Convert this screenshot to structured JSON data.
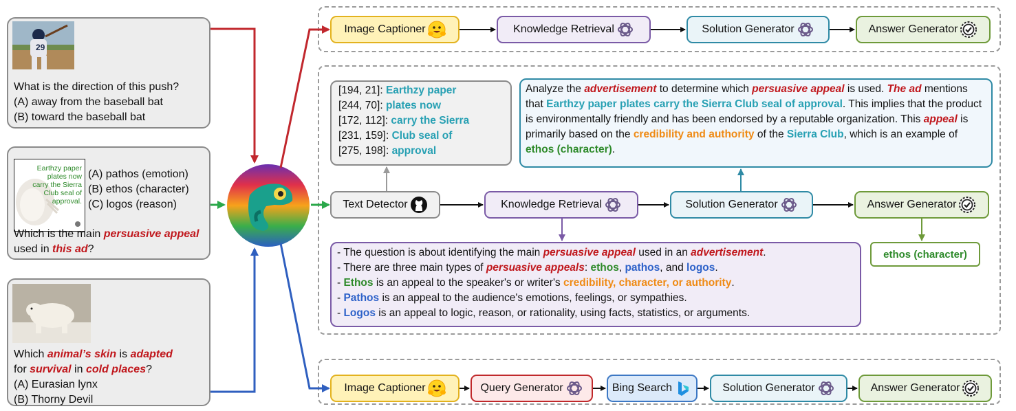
{
  "questions": {
    "q1": {
      "question": "What is the direction of this push?",
      "options": [
        "(A) away from the baseball bat",
        "(B) toward the baseball bat"
      ]
    },
    "q2": {
      "image_text": [
        "Earthzy paper",
        "plates now",
        "carry the Sierra",
        "Club seal of",
        "approval."
      ],
      "options": [
        "(A) pathos (emotion)",
        "(B) ethos (character)",
        "(C) logos (reason)"
      ],
      "q_pre": "Which is the main ",
      "q_em1": "persuasive appeal",
      "q_mid": " used in ",
      "q_em2": "this ad",
      "q_post": "?"
    },
    "q3": {
      "l1_pre": "Which ",
      "l1_em1": "animal’s skin",
      "l1_mid": " is ",
      "l1_em2": "adapted",
      "l2_pre": "for ",
      "l2_em1": "survival",
      "l2_mid": " in ",
      "l2_em2": "cold places",
      "l2_post": "?",
      "options": [
        "(A) Eurasian lynx",
        "(B) Thorny Devil"
      ]
    }
  },
  "pipeline_top": {
    "image_captioner": "Image Captioner",
    "knowledge_retrieval": "Knowledge Retrieval",
    "solution_generator": "Solution Generator",
    "answer_generator": "Answer Generator"
  },
  "pipeline_mid": {
    "text_detector": "Text Detector",
    "knowledge_retrieval": "Knowledge Retrieval",
    "solution_generator": "Solution Generator",
    "answer_generator": "Answer Generator",
    "answer": "ethos (character)"
  },
  "pipeline_bottom": {
    "image_captioner": "Image Captioner",
    "query_generator": "Query Generator",
    "bing_search": "Bing Search",
    "solution_generator": "Solution Generator",
    "answer_generator": "Answer Generator"
  },
  "ocr": {
    "lines": [
      {
        "coord": "[194, 21]: ",
        "text": "Earthzy paper"
      },
      {
        "coord": "[244, 70]: ",
        "text": "plates now"
      },
      {
        "coord": "[172, 112]: ",
        "text": "carry the Sierra"
      },
      {
        "coord": "[231, 159]: ",
        "text": "Club seal of"
      },
      {
        "coord": "[275, 198]: ",
        "text": "approval"
      }
    ]
  },
  "solution": {
    "p1": "Analyze the ",
    "e1": "advertisement",
    "p2": " to determine which ",
    "e2": "persuasive appeal",
    "p3": " is used. ",
    "e3": "The ad",
    "p4": " mentions that ",
    "t1": "Earthzy paper plates carry the Sierra Club seal of approval",
    "p5": ".",
    "p6": "This implies that the product is environmentally friendly and has been endorsed by a reputable organization. This ",
    "e4": "appeal",
    "p7": " is primarily based on the ",
    "o1": "credibility and authority",
    "p8": " of the ",
    "t2": "Sierra Club",
    "p9": ", which is an example of ",
    "g1": "ethos (character)",
    "p10": "."
  },
  "knowledge": {
    "l1_pre": "- The question is about identifying the main ",
    "l1_e1": "persuasive appeal",
    "l1_mid": " used in an ",
    "l1_e2": "advertisement",
    "l1_post": ".",
    "l2_pre": "- There are three main types of ",
    "l2_e1": "persuasive appeals",
    "l2_mid": ": ",
    "l2_g": "ethos",
    "l2_c1": ", ",
    "l2_b": "pathos",
    "l2_c2": ", and ",
    "l2_bb": "logos",
    "l2_post": ".",
    "l3_pre": "- ",
    "l3_g": "Ethos",
    "l3_mid": " is an appeal to the speaker's or writer's ",
    "l3_o": "credibility, character, or authority",
    "l3_post": ".",
    "l4_pre": "- ",
    "l4_b": "Pathos",
    "l4_post": " is an appeal to the audience's emotions, feelings, or sympathies.",
    "l5_pre": "- ",
    "l5_b": "Logos",
    "l5_post": " is an appeal to logic, reason, or rationality, using facts, statistics, or arguments."
  },
  "colors": {
    "red_arrow": "#c1272d",
    "green_arrow": "#2aa84a",
    "blue_arrow": "#2f5fbf",
    "captioner": "#e3b21e",
    "retrieval": "#7a5aa6",
    "solution": "#2f8aa5",
    "answer": "#6e9a3a",
    "bing": "#3d78c4"
  },
  "icons": [
    "huggingface-icon",
    "openai-icon",
    "check-gear-icon",
    "github-icon",
    "bing-icon",
    "chameleon-icon"
  ]
}
